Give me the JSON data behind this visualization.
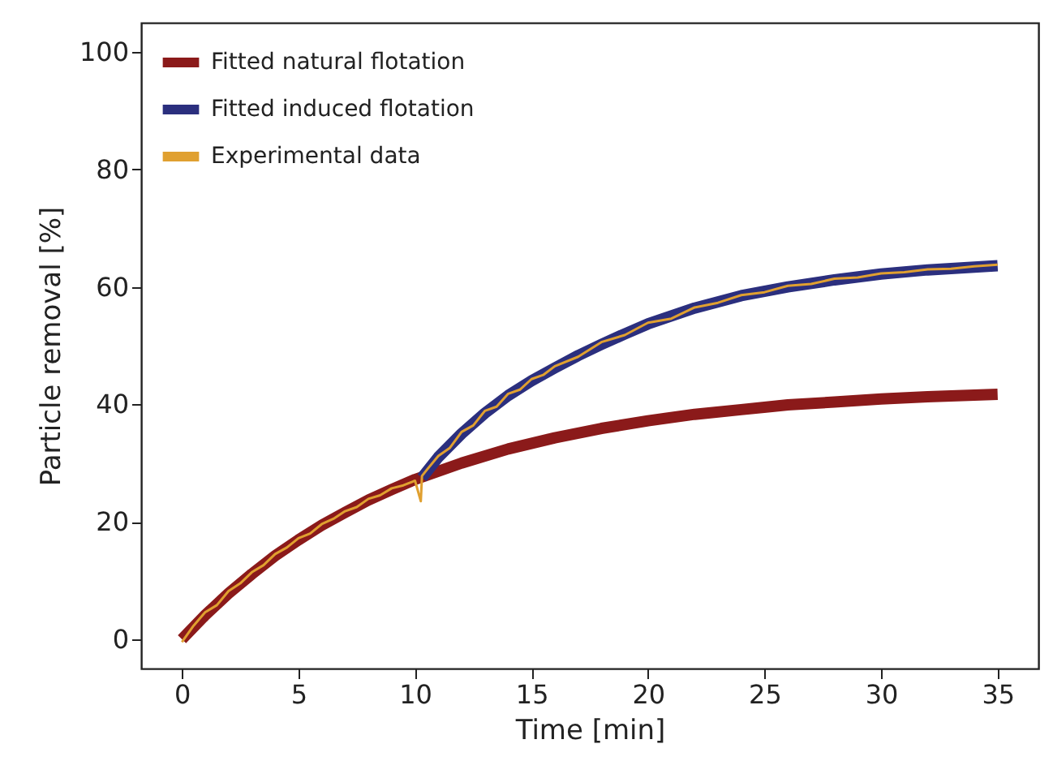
{
  "chart_data": {
    "type": "line",
    "xlabel": "Time [min]",
    "ylabel": "Particle removal [%]",
    "xlim": [
      -1.75,
      36.75
    ],
    "ylim": [
      -5,
      105
    ],
    "xticks": [
      0,
      5,
      10,
      15,
      20,
      25,
      30,
      35
    ],
    "yticks": [
      0,
      20,
      40,
      60,
      80,
      100
    ],
    "grid": false,
    "legend": "top left",
    "line_style": "solid",
    "marker": "none",
    "series": [
      {
        "name": "Fitted natural flotation",
        "color": "#8b1a1a",
        "x": [
          0,
          1,
          2,
          3,
          4,
          5,
          6,
          7,
          8,
          9,
          10,
          12,
          14,
          16,
          18,
          20,
          22,
          24,
          26,
          28,
          30,
          32,
          35
        ],
        "values": [
          0,
          4.1,
          7.8,
          11.1,
          14.2,
          16.9,
          19.4,
          21.6,
          23.7,
          25.5,
          27.2,
          30.0,
          32.4,
          34.3,
          35.9,
          37.2,
          38.3,
          39.1,
          39.9,
          40.4,
          40.9,
          41.3,
          41.7
        ]
      },
      {
        "name": "Fitted induced flotation",
        "color": "#2b2f7e",
        "x": [
          10.3,
          11,
          12,
          13,
          14,
          15,
          16,
          17,
          18,
          19,
          20,
          22,
          24,
          26,
          28,
          30,
          32,
          35
        ],
        "values": [
          27.5,
          31,
          35,
          38.5,
          41.5,
          44,
          46.2,
          48.3,
          50.2,
          52,
          53.7,
          56.4,
          58.5,
          60,
          61.2,
          62.2,
          62.9,
          63.6
        ]
      },
      {
        "name": "Experimental data",
        "color": "#e0a030",
        "x": [
          0,
          0.5,
          1,
          1.5,
          2,
          2.5,
          3,
          3.5,
          4,
          4.5,
          5,
          5.5,
          6,
          6.5,
          7,
          7.5,
          8,
          8.5,
          9,
          9.5,
          10,
          10.25,
          10.3,
          10.5,
          11,
          11.5,
          12,
          12.5,
          13,
          13.5,
          14,
          14.5,
          15,
          15.5,
          16,
          17,
          18,
          19,
          20,
          21,
          22,
          23,
          24,
          25,
          26,
          27,
          28,
          29,
          30,
          31,
          32,
          33,
          34,
          35
        ],
        "values": [
          -0.5,
          2.3,
          4.6,
          5.8,
          8.2,
          9.5,
          11.4,
          12.6,
          14.5,
          15.6,
          17.2,
          18.0,
          19.6,
          20.5,
          21.8,
          22.5,
          23.9,
          24.5,
          25.7,
          26.2,
          27.0,
          23.5,
          27.8,
          28.8,
          31.2,
          32.6,
          35.3,
          36.4,
          38.9,
          39.6,
          41.8,
          42.5,
          44.3,
          45.0,
          46.5,
          48.1,
          50.6,
          51.8,
          53.9,
          54.6,
          56.5,
          57.3,
          58.6,
          59.1,
          60.2,
          60.5,
          61.4,
          61.6,
          62.3,
          62.5,
          63.0,
          63.1,
          63.5,
          63.8
        ]
      }
    ]
  }
}
